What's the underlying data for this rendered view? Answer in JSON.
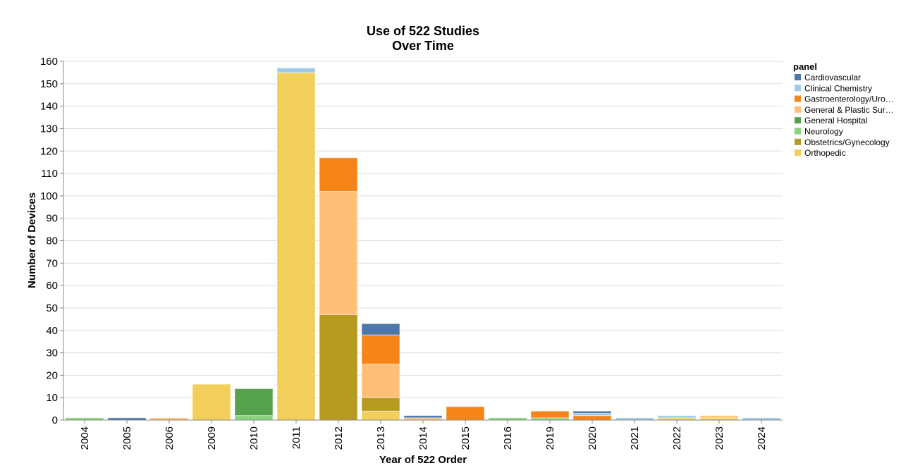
{
  "chart_data": {
    "type": "bar",
    "stacked": true,
    "title": [
      "Use of 522 Studies",
      "Over Time"
    ],
    "xlabel": "Year of 522 Order",
    "ylabel": "Number of Devices",
    "ylim": [
      0,
      160
    ],
    "yticks": [
      0,
      10,
      20,
      30,
      40,
      50,
      60,
      70,
      80,
      90,
      100,
      110,
      120,
      130,
      140,
      150,
      160
    ],
    "grid": true,
    "legend_title": "panel",
    "legend_placement": "right",
    "categories": [
      "2004",
      "2005",
      "2006",
      "2009",
      "2010",
      "2011",
      "2012",
      "2013",
      "2014",
      "2015",
      "2016",
      "2019",
      "2020",
      "2021",
      "2022",
      "2023",
      "2024"
    ],
    "series": [
      {
        "name": "Orthopedic",
        "label": "Orthopedic",
        "color": "#f2cf5b",
        "values": [
          0,
          0,
          0,
          16,
          0,
          155,
          0,
          4,
          0,
          0,
          0,
          0,
          0,
          0,
          1,
          1,
          0
        ]
      },
      {
        "name": "Obstetrics/Gynecology",
        "label": "Obstetrics/Gynecology",
        "color": "#b79a20",
        "values": [
          0,
          0,
          0,
          0,
          0,
          0,
          47,
          6,
          0,
          0,
          0,
          0,
          0,
          0,
          0,
          0,
          0
        ]
      },
      {
        "name": "Neurology",
        "label": "Neurology",
        "color": "#88d27a",
        "values": [
          1,
          0,
          0,
          0,
          2,
          0,
          0,
          0,
          0,
          0,
          1,
          1,
          0,
          0,
          0,
          0,
          0
        ]
      },
      {
        "name": "General Hospital",
        "label": "General Hospital",
        "color": "#54a24b",
        "values": [
          0,
          0,
          0,
          0,
          12,
          0,
          0,
          0,
          0,
          0,
          0,
          0,
          0,
          0,
          0,
          0,
          0
        ]
      },
      {
        "name": "General & Plastic Surgery",
        "label": "General & Plastic Sur…",
        "color": "#ffbf79",
        "values": [
          0,
          0,
          1,
          0,
          0,
          0,
          55,
          15,
          1,
          0,
          0,
          0,
          0,
          0,
          0,
          1,
          0
        ]
      },
      {
        "name": "Gastroenterology/Urology",
        "label": "Gastroenterology/Uro…",
        "color": "#f58518",
        "values": [
          0,
          0,
          0,
          0,
          0,
          0,
          15,
          13,
          0,
          6,
          0,
          3,
          2,
          0,
          0,
          0,
          0
        ]
      },
      {
        "name": "Clinical Chemistry",
        "label": "Clinical Chemistry",
        "color": "#9ecae9",
        "values": [
          0,
          0,
          0,
          0,
          0,
          2,
          0,
          0,
          0,
          0,
          0,
          0,
          1,
          1,
          1,
          0,
          1
        ]
      },
      {
        "name": "Cardiovascular",
        "label": "Cardiovascular",
        "color": "#4c78a8",
        "values": [
          0,
          1,
          0,
          0,
          0,
          0,
          0,
          5,
          1,
          0,
          0,
          0,
          1,
          0,
          0,
          0,
          0
        ]
      }
    ]
  }
}
